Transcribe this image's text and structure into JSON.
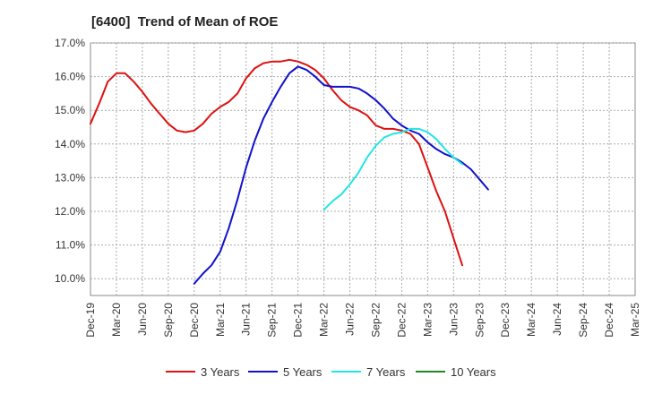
{
  "chart_data": {
    "type": "line",
    "title": "[6400]  Trend of Mean of ROE",
    "xlabel": "",
    "ylabel": "",
    "x_ticks": [
      "Dec-19",
      "Mar-20",
      "Jun-20",
      "Sep-20",
      "Dec-20",
      "Mar-21",
      "Jun-21",
      "Sep-21",
      "Dec-21",
      "Mar-22",
      "Jun-22",
      "Sep-22",
      "Dec-22",
      "Mar-23",
      "Jun-23",
      "Sep-23",
      "Dec-23",
      "Mar-24",
      "Jun-24",
      "Sep-24",
      "Dec-24",
      "Mar-25"
    ],
    "y_ticks": [
      "10.0%",
      "11.0%",
      "12.0%",
      "13.0%",
      "14.0%",
      "15.0%",
      "16.0%",
      "17.0%"
    ],
    "ylim": [
      9.5,
      17.0
    ],
    "grid": true,
    "legend_position": "bottom",
    "series": [
      {
        "name": "3 Years",
        "color": "#dd1111",
        "start_index": 0,
        "values": [
          14.6,
          15.2,
          15.85,
          16.1,
          16.1,
          15.85,
          15.55,
          15.2,
          14.9,
          14.6,
          14.4,
          14.35,
          14.4,
          14.6,
          14.9,
          15.1,
          15.25,
          15.5,
          15.95,
          16.25,
          16.4,
          16.45,
          16.45,
          16.5,
          16.45,
          16.35,
          16.2,
          15.95,
          15.6,
          15.3,
          15.1,
          15.0,
          14.85,
          14.55,
          14.45,
          14.45,
          14.4,
          14.3,
          14.0,
          13.3,
          12.6,
          12.0,
          11.2,
          10.4
        ]
      },
      {
        "name": "5 Years",
        "color": "#1111cc",
        "start_index": 12,
        "values": [
          9.85,
          10.15,
          10.4,
          10.8,
          11.5,
          12.35,
          13.3,
          14.1,
          14.75,
          15.25,
          15.7,
          16.1,
          16.3,
          16.2,
          16.0,
          15.75,
          15.7,
          15.7,
          15.7,
          15.65,
          15.5,
          15.3,
          15.05,
          14.75,
          14.55,
          14.4,
          14.3,
          14.05,
          13.85,
          13.7,
          13.6,
          13.45,
          13.25,
          12.95,
          12.65
        ]
      },
      {
        "name": "7 Years",
        "color": "#22e5e5",
        "start_index": 27,
        "values": [
          12.05,
          12.3,
          12.5,
          12.8,
          13.15,
          13.6,
          13.95,
          14.2,
          14.3,
          14.35,
          14.45,
          14.45,
          14.35,
          14.15,
          13.85,
          13.6,
          13.4
        ]
      },
      {
        "name": "10 Years",
        "color": "#228822",
        "start_index": 0,
        "values": []
      }
    ]
  }
}
